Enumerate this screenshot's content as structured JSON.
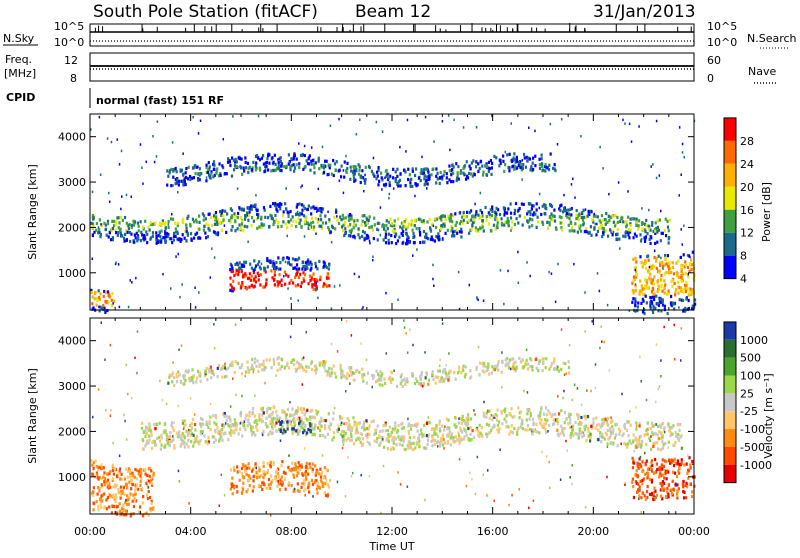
{
  "header": {
    "station": "South Pole Station (fitACF)",
    "beam": "Beam 12",
    "date": "31/Jan/2013"
  },
  "status": {
    "nsky_label": "N.Sky",
    "nsky_ticks": [
      "10^5",
      "10^0"
    ],
    "nsearch_label": "N.Search",
    "freq_label_1": "Freq.",
    "freq_label_2": "[MHz]",
    "freq_ticks": [
      "12",
      "8"
    ],
    "nave_label": "Nave",
    "nave_ticks": [
      "60",
      "0"
    ],
    "cpid_label": "CPID",
    "cpid_text": "normal (fast) 151 RF"
  },
  "chart_data": [
    {
      "type": "heatmap",
      "title": "",
      "xlabel": "Time UT",
      "ylabel": "Slant Range [km]",
      "x_ticks": [
        "00:00",
        "04:00",
        "08:00",
        "12:00",
        "16:00",
        "20:00",
        "00:00"
      ],
      "xlim": [
        0,
        24
      ],
      "ylim": [
        180,
        4500
      ],
      "y_ticks": [
        1000,
        2000,
        3000,
        4000
      ],
      "colorbar": {
        "label": "Power [dB]",
        "ticks": [
          "28",
          "24",
          "20",
          "16",
          "12",
          "8",
          "4"
        ],
        "colors": [
          "#ff0000",
          "#ff6a00",
          "#ffb000",
          "#e8e800",
          "#3ea03e",
          "#1a6a8a",
          "#0000ff"
        ]
      },
      "features": [
        {
          "name": "upper band",
          "t": [
            3,
            18.5
          ],
          "range_km": [
            3100,
            3500
          ],
          "level_db": 10
        },
        {
          "name": "main band",
          "t": [
            0,
            23
          ],
          "range_km": [
            1850,
            2400
          ],
          "level_db": 14
        },
        {
          "name": "lower enhancement",
          "t": [
            5.5,
            9.5
          ],
          "range_km": [
            550,
            1200
          ],
          "level_db": 28
        },
        {
          "name": "morning near range",
          "t": [
            0,
            1
          ],
          "range_km": [
            200,
            700
          ],
          "level_db": 22
        },
        {
          "name": "late near range",
          "t": [
            21.5,
            24
          ],
          "range_km": [
            300,
            1600
          ],
          "level_db": 20
        }
      ]
    },
    {
      "type": "heatmap",
      "title": "",
      "xlabel": "Time UT",
      "ylabel": "Slant Range [km]",
      "x_ticks": [
        "00:00",
        "04:00",
        "08:00",
        "12:00",
        "16:00",
        "20:00",
        "00:00"
      ],
      "xlim": [
        0,
        24
      ],
      "ylim": [
        180,
        4500
      ],
      "y_ticks": [
        1000,
        2000,
        3000,
        4000
      ],
      "colorbar": {
        "label": "Velocity [m s⁻¹]",
        "ticks": [
          "1000",
          "500",
          "100",
          "25",
          "-25",
          "-100",
          "-500",
          "-1000"
        ],
        "colors": [
          "#1a3aa8",
          "#2a6e30",
          "#4aa52a",
          "#9ad84a",
          "#c8c8c8",
          "#ffc66a",
          "#ff8c10",
          "#ff4a00",
          "#e80000"
        ]
      },
      "features": [
        {
          "name": "main band",
          "t": [
            2,
            23.5
          ],
          "range_km": [
            1800,
            2400
          ],
          "velocity": 0
        },
        {
          "name": "upper band",
          "t": [
            3,
            19
          ],
          "range_km": [
            3200,
            3500
          ],
          "velocity": 0
        },
        {
          "name": "lower enhancement",
          "t": [
            5.5,
            9.5
          ],
          "range_km": [
            550,
            1200
          ],
          "velocity": -300
        },
        {
          "name": "morning near range",
          "t": [
            0,
            2.5
          ],
          "range_km": [
            300,
            1400
          ],
          "velocity": -400
        },
        {
          "name": "blue patch",
          "t": [
            7.5,
            8.8
          ],
          "range_km": [
            1850,
            2100
          ],
          "velocity": 800
        },
        {
          "name": "late near range",
          "t": [
            21.5,
            24
          ],
          "range_km": [
            700,
            1600
          ],
          "velocity": -500
        }
      ]
    }
  ]
}
